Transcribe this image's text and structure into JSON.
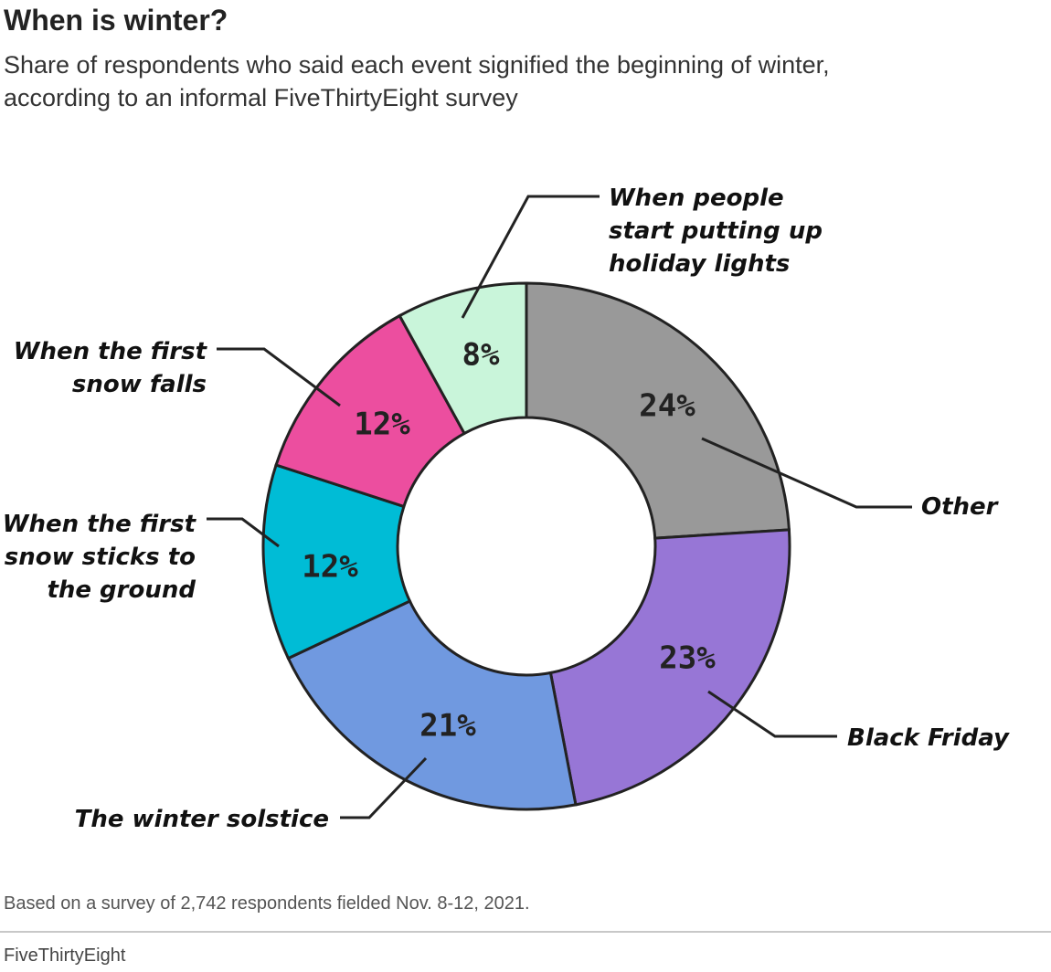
{
  "header": {
    "title": "When is winter?",
    "subtitle": "Share of respondents who said each event signified the beginning of winter,\naccording to an informal FiveThirtyEight survey"
  },
  "chart_data": {
    "type": "pie",
    "title": "When is winter?",
    "donut": true,
    "slices": [
      {
        "label": "Other",
        "value": 24,
        "display": "24%",
        "color": "#999999"
      },
      {
        "label": "Black Friday",
        "value": 23,
        "display": "23%",
        "color": "#9776d6"
      },
      {
        "label": "The winter solstice",
        "value": 21,
        "display": "21%",
        "color": "#7099e0"
      },
      {
        "label": "When the first snow sticks to the ground",
        "value": 12,
        "display": "12%",
        "color": "#00bcd6"
      },
      {
        "label": "When the first snow falls",
        "value": 12,
        "display": "12%",
        "color": "#ec4e9f"
      },
      {
        "label": "When people start putting up holiday lights",
        "value": 8,
        "display": "8%",
        "color": "#c9f5da"
      }
    ]
  },
  "footer": {
    "note": "Based on a survey of 2,742 respondents fielded Nov. 8-12, 2021.",
    "source": "FiveThirtyEight"
  }
}
